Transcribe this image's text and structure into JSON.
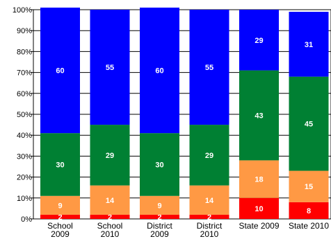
{
  "chart_data": {
    "type": "bar",
    "stacked": true,
    "percent_axis": true,
    "categories": [
      [
        "School",
        "2009"
      ],
      [
        "School",
        "2010"
      ],
      [
        "District",
        "2009"
      ],
      [
        "District",
        "2010"
      ],
      [
        "State 2009"
      ],
      [
        "State 2010"
      ]
    ],
    "series": [
      {
        "color": "#ff0000",
        "values": [
          2,
          2,
          2,
          2,
          10,
          8
        ]
      },
      {
        "color": "#ff9944",
        "values": [
          9,
          14,
          9,
          14,
          18,
          15
        ]
      },
      {
        "color": "#008033",
        "values": [
          30,
          29,
          30,
          29,
          43,
          45
        ]
      },
      {
        "color": "#0000ff",
        "values": [
          60,
          55,
          60,
          55,
          29,
          31
        ]
      }
    ],
    "y_ticks": [
      "0%",
      "10%",
      "20%",
      "30%",
      "40%",
      "50%",
      "60%",
      "70%",
      "80%",
      "90%",
      "100%"
    ],
    "ylim": [
      0,
      100
    ],
    "grid": true,
    "title": "",
    "xlabel": "",
    "ylabel": ""
  }
}
